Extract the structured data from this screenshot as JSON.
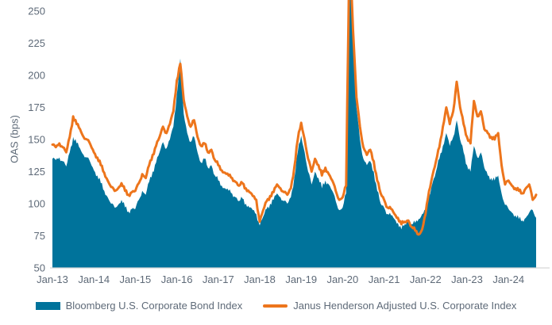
{
  "chart_data": {
    "type": "area",
    "title": "",
    "ylabel": "OAS (bps)",
    "xlabel": "",
    "ylim": [
      50,
      250
    ],
    "y_ticks": [
      50,
      75,
      100,
      125,
      150,
      175,
      200,
      225,
      250
    ],
    "x_tick_labels": [
      "Jan-13",
      "Jan-14",
      "Jan-15",
      "Jan-16",
      "Jan-17",
      "Jan-18",
      "Jan-19",
      "Jan-20",
      "Jan-21",
      "Jan-22",
      "Jan-23",
      "Jan-24"
    ],
    "x_start": "Jan-13",
    "x_frequency": "monthly",
    "grid": false,
    "legend_position": "bottom",
    "note_peak_clipped_at_top": "Mar-2020 COVID spike exceeds the 250 bps axis maximum and is clipped",
    "colors": {
      "area": "#00739B",
      "line": "#ED751C",
      "axis_text": "#5E6A78",
      "axis_line": "#D6D6D6",
      "background": "#FFFFFF"
    },
    "series": [
      {
        "name": "Bloomberg U.S. Corporate Bond Index",
        "type": "area",
        "color": "#00739B",
        "values": [
          135,
          134,
          136,
          133,
          129,
          140,
          152,
          147,
          143,
          138,
          136,
          132,
          126,
          122,
          116,
          110,
          105,
          100,
          97,
          99,
          103,
          97,
          94,
          96,
          96,
          103,
          110,
          107,
          117,
          125,
          132,
          140,
          148,
          143,
          150,
          160,
          185,
          213,
          170,
          155,
          148,
          152,
          140,
          132,
          135,
          128,
          130,
          122,
          118,
          114,
          112,
          110,
          108,
          105,
          102,
          104,
          100,
          97,
          95,
          92,
          83,
          90,
          96,
          100,
          103,
          108,
          105,
          102,
          100,
          105,
          120,
          140,
          153,
          140,
          125,
          115,
          125,
          120,
          112,
          118,
          115,
          110,
          102,
          95,
          97,
          108,
          300,
          225,
          175,
          150,
          135,
          130,
          133,
          125,
          110,
          100,
          97,
          92,
          91,
          88,
          85,
          80,
          84,
          87,
          84,
          85,
          88,
          92,
          95,
          106,
          116,
          125,
          135,
          145,
          155,
          145,
          152,
          165,
          150,
          140,
          130,
          125,
          145,
          136,
          140,
          128,
          122,
          120,
          118,
          122,
          108,
          99,
          96,
          93,
          91,
          88,
          87,
          89,
          93,
          95,
          89
        ]
      },
      {
        "name": "Janus Henderson Adjusted U.S. Corporate Index",
        "type": "line",
        "color": "#ED751C",
        "values": [
          146,
          144,
          147,
          144,
          140,
          152,
          168,
          162,
          158,
          152,
          150,
          146,
          140,
          136,
          130,
          124,
          118,
          113,
          110,
          112,
          116,
          110,
          107,
          109,
          110,
          116,
          123,
          120,
          130,
          138,
          145,
          152,
          160,
          155,
          162,
          172,
          196,
          209,
          181,
          168,
          160,
          165,
          152,
          145,
          147,
          140,
          142,
          134,
          130,
          126,
          124,
          122,
          120,
          117,
          114,
          116,
          112,
          109,
          106,
          103,
          86,
          95,
          102,
          106,
          109,
          115,
          112,
          109,
          107,
          112,
          128,
          150,
          163,
          150,
          135,
          125,
          135,
          130,
          122,
          128,
          123,
          118,
          110,
          103,
          105,
          114,
          305,
          235,
          183,
          160,
          144,
          138,
          142,
          133,
          118,
          108,
          103,
          97,
          96,
          92,
          89,
          84,
          86,
          87,
          82,
          79,
          76,
          80,
          92,
          110,
          122,
          133,
          144,
          160,
          175,
          162,
          172,
          195,
          175,
          162,
          152,
          147,
          180,
          168,
          172,
          158,
          155,
          152,
          150,
          155,
          130,
          115,
          118,
          114,
          112,
          110,
          108,
          112,
          115,
          103,
          107
        ]
      }
    ]
  }
}
